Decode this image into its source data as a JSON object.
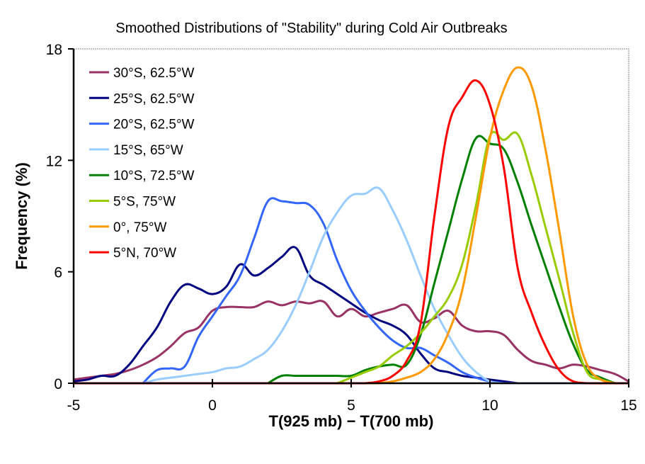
{
  "chart_data": {
    "type": "line",
    "title": "Smoothed Distributions of \"Stability\" during Cold Air Outbreaks",
    "xlabel": "T(925 mb) − T(700 mb)",
    "ylabel": "Frequency (%)",
    "xlim": [
      -5,
      15
    ],
    "ylim": [
      0,
      18
    ],
    "xticks": [
      -5,
      0,
      5,
      10,
      15
    ],
    "yticks": [
      0,
      6,
      12,
      18
    ],
    "xtick_labels": [
      "-5",
      "0",
      "5",
      "10",
      "15"
    ],
    "ytick_labels": [
      "0",
      "6",
      "12",
      "18"
    ],
    "grid": false,
    "legend_position": "top-left",
    "series": [
      {
        "name": "30°S, 62.5°W",
        "color": "#993366",
        "x": [
          -5,
          -4.5,
          -4,
          -3.5,
          -3,
          -2.5,
          -2,
          -1.5,
          -1,
          -0.5,
          0,
          0.5,
          1,
          1.5,
          2,
          2.5,
          3,
          3.5,
          4,
          4.5,
          5,
          5.5,
          6,
          6.5,
          7,
          7.5,
          8,
          8.5,
          9,
          9.5,
          10,
          10.5,
          11,
          11.5,
          12,
          12.5,
          13,
          13.5,
          14,
          14.5,
          15
        ],
        "y": [
          0.2,
          0.3,
          0.4,
          0.5,
          0.7,
          1.0,
          1.4,
          2.0,
          2.7,
          3.0,
          3.9,
          4.1,
          4.1,
          4.1,
          4.4,
          4.2,
          4.4,
          4.3,
          4.4,
          3.6,
          4.0,
          3.6,
          3.8,
          4.0,
          4.2,
          3.3,
          3.5,
          3.9,
          3.1,
          2.8,
          2.8,
          2.6,
          1.8,
          1.2,
          1.0,
          0.8,
          1.0,
          0.9,
          0.7,
          0.5,
          0.1
        ]
      },
      {
        "name": "25°S, 62.5°W",
        "color": "#000080",
        "x": [
          -5,
          -4.5,
          -4,
          -3.5,
          -3,
          -2.5,
          -2,
          -1.5,
          -1,
          -0.5,
          0,
          0.5,
          1,
          1.5,
          2,
          2.5,
          3,
          3.5,
          4,
          4.5,
          5,
          5.5,
          6,
          6.5,
          7,
          7.5,
          8,
          8.5,
          9,
          9.5,
          10,
          10.5,
          11
        ],
        "y": [
          0.1,
          0.2,
          0.4,
          0.4,
          1.0,
          2.0,
          3.0,
          4.4,
          5.3,
          5.1,
          4.8,
          5.2,
          6.4,
          5.8,
          6.2,
          6.8,
          7.3,
          5.8,
          5.3,
          4.8,
          4.3,
          3.8,
          3.4,
          3.1,
          2.6,
          1.6,
          0.8,
          0.6,
          0.4,
          0.3,
          0.2,
          0.1,
          0
        ]
      },
      {
        "name": "20°S, 62.5°W",
        "color": "#3366FF",
        "x": [
          -2.5,
          -2,
          -1.5,
          -1,
          -0.5,
          0,
          0.5,
          1,
          1.5,
          2,
          2.5,
          3,
          3.5,
          4,
          4.5,
          5,
          5.5,
          6,
          6.5,
          7,
          7.5,
          8,
          8.5,
          9,
          9.5,
          10,
          10.5
        ],
        "y": [
          0,
          0.7,
          0.8,
          0.9,
          2.5,
          3.6,
          4.7,
          5.8,
          7.8,
          9.8,
          9.8,
          9.7,
          9.6,
          8.6,
          6.6,
          5.0,
          3.9,
          3.0,
          2.3,
          1.9,
          1.9,
          1.5,
          1.1,
          0.6,
          0.3,
          0.1,
          0
        ]
      },
      {
        "name": "15°S, 65°W",
        "color": "#99CCFF",
        "x": [
          -2.5,
          -2,
          -1.5,
          -1,
          -0.5,
          0,
          0.5,
          1,
          1.5,
          2,
          2.5,
          3,
          3.5,
          4,
          4.5,
          5,
          5.5,
          6,
          6.5,
          7,
          7.5,
          8,
          8.5,
          9,
          9.5,
          10,
          10.5,
          11
        ],
        "y": [
          0,
          0.2,
          0.3,
          0.4,
          0.5,
          0.6,
          0.8,
          0.9,
          1.3,
          1.8,
          2.8,
          4.2,
          6.0,
          7.9,
          9.2,
          10.1,
          10.2,
          10.5,
          9.3,
          7.7,
          5.8,
          4.0,
          2.6,
          1.4,
          0.6,
          0.1,
          0,
          0
        ]
      },
      {
        "name": "10°S, 72.5°W",
        "color": "#008000",
        "x": [
          2,
          2.5,
          3,
          3.5,
          4,
          4.5,
          5,
          5.5,
          6,
          6.5,
          7,
          7.5,
          8,
          8.5,
          9,
          9.5,
          10,
          10.5,
          11,
          11.5,
          12,
          12.5,
          13,
          13.5,
          14,
          14.5
        ],
        "y": [
          0,
          0.4,
          0.4,
          0.4,
          0.4,
          0.4,
          0.4,
          0.7,
          0.9,
          1.0,
          1.0,
          2.6,
          5.4,
          8.2,
          11.0,
          13.2,
          12.9,
          12.6,
          10.8,
          8.5,
          6.3,
          4.1,
          2.1,
          0.7,
          0.3,
          0
        ]
      },
      {
        "name": "5°S, 75°W",
        "color": "#99CC00",
        "x": [
          4.5,
          5,
          5.5,
          6,
          6.5,
          7,
          7.5,
          8,
          8.5,
          9,
          9.5,
          10,
          10.5,
          11,
          11.5,
          12,
          12.5,
          13,
          13.5,
          14,
          14.5
        ],
        "y": [
          0,
          0.3,
          0.6,
          0.9,
          1.5,
          2.0,
          2.7,
          3.6,
          4.6,
          6.4,
          9.6,
          13.3,
          13.1,
          13.4,
          11.2,
          8.4,
          5.6,
          2.7,
          0.6,
          0.2,
          0
        ]
      },
      {
        "name": "0°, 75°W",
        "color": "#FF9900",
        "x": [
          6,
          6.5,
          7,
          7.5,
          8,
          8.5,
          9,
          9.5,
          10,
          10.5,
          11,
          11.5,
          12,
          12.5,
          13,
          13.5,
          14,
          14.5
        ],
        "y": [
          0,
          0.1,
          0.3,
          0.6,
          1.3,
          2.7,
          5.0,
          9.0,
          13.2,
          15.8,
          17.0,
          16.0,
          12.6,
          8.2,
          3.6,
          1.0,
          0.2,
          0
        ]
      },
      {
        "name": "5°N, 70°W",
        "color": "#FF0000",
        "x": [
          5.5,
          6,
          6.5,
          7,
          7.5,
          8,
          8.5,
          9,
          9.5,
          10,
          10.5,
          11,
          11.5,
          12,
          12.5,
          13,
          13.5
        ],
        "y": [
          0,
          0.1,
          0.4,
          1.2,
          3.2,
          9.0,
          13.8,
          15.4,
          16.3,
          15.0,
          11.6,
          6.2,
          3.8,
          2.0,
          0.7,
          0.1,
          0
        ]
      }
    ]
  }
}
